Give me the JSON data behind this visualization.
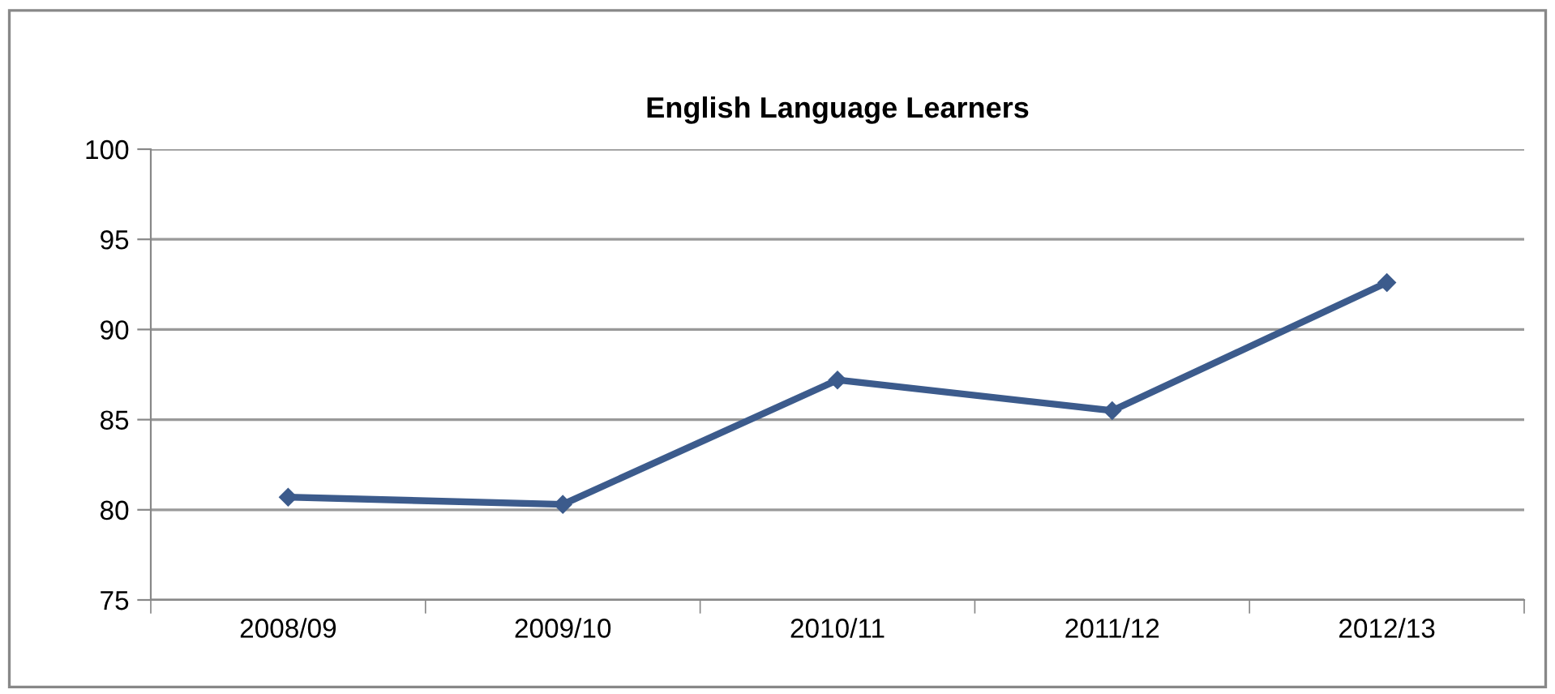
{
  "chart_data": {
    "type": "line",
    "title": "English Language Learners",
    "categories": [
      "2008/09",
      "2009/10",
      "2010/11",
      "2011/12",
      "2012/13"
    ],
    "series": [
      {
        "color": "#3c5b8c",
        "values": [
          80.7,
          80.3,
          87.2,
          85.5,
          92.6
        ]
      }
    ],
    "ylim": [
      75,
      100
    ],
    "yticks": [
      75,
      80,
      85,
      90,
      95,
      100
    ],
    "grid": "y",
    "marker": "diamond",
    "line_style": "solid"
  }
}
